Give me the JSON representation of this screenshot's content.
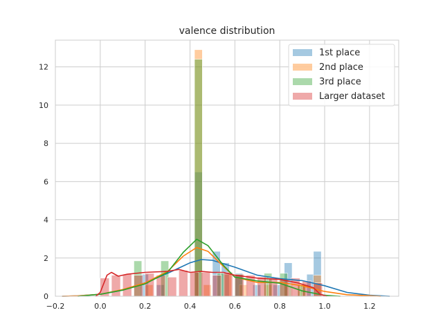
{
  "chart_data": {
    "type": "bar",
    "subtype": "histogram-with-kde",
    "title": "valence distribution",
    "xlabel": "",
    "ylabel": "",
    "xlim": [
      -0.2,
      1.33
    ],
    "ylim": [
      0,
      13.4
    ],
    "x_ticks": [
      -0.2,
      0.0,
      0.2,
      0.4,
      0.6,
      0.8,
      1.0,
      1.2
    ],
    "x_tick_labels": [
      "−0.2",
      "0.0",
      "0.2",
      "0.4",
      "0.6",
      "0.8",
      "1.0",
      "1.2"
    ],
    "y_ticks": [
      0,
      2,
      4,
      6,
      8,
      10,
      12
    ],
    "y_tick_labels": [
      "0",
      "2",
      "4",
      "6",
      "8",
      "10",
      "12"
    ],
    "grid": true,
    "legend_position": "top-right",
    "series": [
      {
        "name": "1st place",
        "color": "#1f77b4",
        "bars": [
          [
            0.18,
            0.035,
            1.15
          ],
          [
            0.25,
            0.035,
            0.6
          ],
          [
            0.42,
            0.035,
            6.5
          ],
          [
            0.5,
            0.035,
            2.35
          ],
          [
            0.54,
            0.035,
            1.75
          ],
          [
            0.6,
            0.035,
            1.2
          ],
          [
            0.68,
            0.035,
            0.6
          ],
          [
            0.77,
            0.035,
            0.6
          ],
          [
            0.82,
            0.035,
            1.75
          ],
          [
            0.92,
            0.035,
            1.15
          ],
          [
            0.95,
            0.035,
            2.35
          ]
        ],
        "kde": [
          [
            -0.17,
            0.0
          ],
          [
            -0.1,
            0.02
          ],
          [
            0.0,
            0.1
          ],
          [
            0.1,
            0.32
          ],
          [
            0.2,
            0.7
          ],
          [
            0.3,
            1.2
          ],
          [
            0.4,
            1.75
          ],
          [
            0.45,
            1.92
          ],
          [
            0.5,
            1.88
          ],
          [
            0.6,
            1.52
          ],
          [
            0.7,
            1.1
          ],
          [
            0.8,
            0.92
          ],
          [
            0.9,
            0.82
          ],
          [
            1.0,
            0.55
          ],
          [
            1.1,
            0.2
          ],
          [
            1.2,
            0.05
          ],
          [
            1.29,
            0.0
          ]
        ]
      },
      {
        "name": "2nd place",
        "color": "#ff7f0e",
        "bars": [
          [
            0.2,
            0.035,
            0.6
          ],
          [
            0.42,
            0.035,
            12.9
          ],
          [
            0.46,
            0.035,
            0.6
          ],
          [
            0.55,
            0.035,
            1.15
          ],
          [
            0.62,
            0.035,
            0.6
          ],
          [
            0.73,
            0.035,
            0.6
          ],
          [
            0.82,
            0.035,
            0.6
          ],
          [
            0.88,
            0.035,
            0.6
          ],
          [
            0.95,
            0.035,
            1.1
          ]
        ],
        "kde": [
          [
            -0.17,
            0.0
          ],
          [
            -0.1,
            0.02
          ],
          [
            0.0,
            0.1
          ],
          [
            0.1,
            0.35
          ],
          [
            0.2,
            0.7
          ],
          [
            0.3,
            1.3
          ],
          [
            0.37,
            2.1
          ],
          [
            0.43,
            2.55
          ],
          [
            0.48,
            2.35
          ],
          [
            0.55,
            1.55
          ],
          [
            0.6,
            1.0
          ],
          [
            0.7,
            0.72
          ],
          [
            0.8,
            0.72
          ],
          [
            0.9,
            0.55
          ],
          [
            1.0,
            0.25
          ],
          [
            1.1,
            0.08
          ],
          [
            1.25,
            0.0
          ]
        ]
      },
      {
        "name": "3rd place",
        "color": "#2ca02c",
        "bars": [
          [
            0.15,
            0.035,
            1.85
          ],
          [
            0.27,
            0.035,
            1.85
          ],
          [
            0.42,
            0.035,
            12.4
          ],
          [
            0.52,
            0.035,
            1.2
          ],
          [
            0.6,
            0.035,
            1.15
          ],
          [
            0.73,
            0.035,
            1.2
          ],
          [
            0.8,
            0.035,
            1.2
          ],
          [
            0.88,
            0.035,
            0.6
          ]
        ],
        "kde": [
          [
            -0.1,
            0.0
          ],
          [
            0.0,
            0.1
          ],
          [
            0.1,
            0.32
          ],
          [
            0.2,
            0.65
          ],
          [
            0.3,
            1.25
          ],
          [
            0.37,
            2.3
          ],
          [
            0.43,
            2.98
          ],
          [
            0.48,
            2.65
          ],
          [
            0.55,
            1.6
          ],
          [
            0.6,
            1.0
          ],
          [
            0.7,
            0.8
          ],
          [
            0.8,
            0.68
          ],
          [
            0.9,
            0.28
          ],
          [
            1.0,
            0.05
          ],
          [
            1.07,
            0.0
          ]
        ]
      },
      {
        "name": "Larger dataset",
        "color": "#d62728",
        "bars": [
          [
            0.0,
            0.04,
            0.95
          ],
          [
            0.05,
            0.04,
            1.1
          ],
          [
            0.1,
            0.04,
            1.15
          ],
          [
            0.15,
            0.04,
            1.1
          ],
          [
            0.2,
            0.04,
            1.2
          ],
          [
            0.25,
            0.04,
            1.1
          ],
          [
            0.3,
            0.04,
            1.0
          ],
          [
            0.35,
            0.04,
            1.35
          ],
          [
            0.4,
            0.04,
            1.25
          ],
          [
            0.45,
            0.04,
            1.25
          ],
          [
            0.5,
            0.04,
            1.1
          ],
          [
            0.55,
            0.04,
            1.25
          ],
          [
            0.6,
            0.04,
            1.15
          ],
          [
            0.65,
            0.04,
            1.1
          ],
          [
            0.7,
            0.04,
            1.0
          ],
          [
            0.75,
            0.04,
            0.95
          ],
          [
            0.8,
            0.04,
            0.9
          ],
          [
            0.85,
            0.04,
            0.95
          ],
          [
            0.9,
            0.04,
            0.8
          ],
          [
            0.95,
            0.04,
            0.7
          ]
        ],
        "kde": [
          [
            -0.02,
            0.0
          ],
          [
            0.0,
            0.2
          ],
          [
            0.03,
            1.1
          ],
          [
            0.05,
            1.25
          ],
          [
            0.08,
            1.05
          ],
          [
            0.12,
            1.15
          ],
          [
            0.2,
            1.25
          ],
          [
            0.3,
            1.3
          ],
          [
            0.35,
            1.4
          ],
          [
            0.4,
            1.25
          ],
          [
            0.45,
            1.3
          ],
          [
            0.5,
            1.25
          ],
          [
            0.55,
            1.25
          ],
          [
            0.6,
            1.1
          ],
          [
            0.7,
            0.95
          ],
          [
            0.8,
            0.88
          ],
          [
            0.88,
            0.7
          ],
          [
            0.95,
            0.45
          ],
          [
            0.98,
            0.1
          ],
          [
            1.01,
            0.0
          ]
        ]
      }
    ]
  }
}
